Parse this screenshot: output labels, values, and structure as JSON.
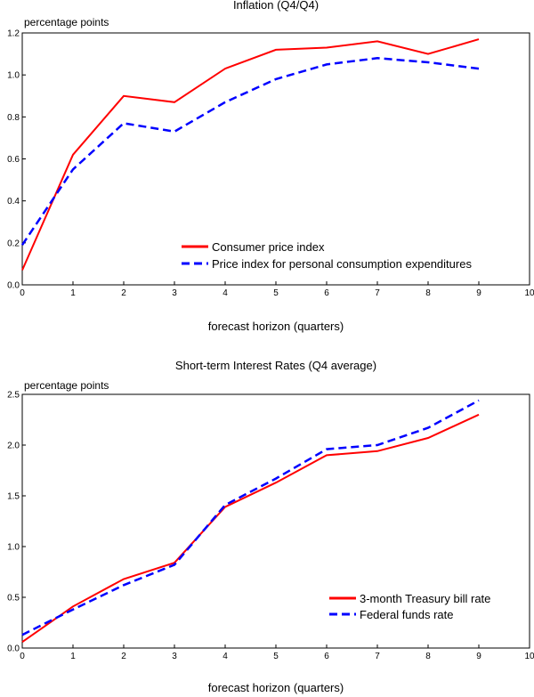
{
  "chart_data": [
    {
      "type": "line",
      "title": "Inflation (Q4/Q4)",
      "unit_label": "percentage points",
      "xlabel": "forecast horizon (quarters)",
      "ylabel": "percentage points",
      "xlim": [
        0,
        10
      ],
      "ylim": [
        0.0,
        1.2
      ],
      "x_ticks": [
        0,
        1,
        2,
        3,
        4,
        5,
        6,
        7,
        8,
        9,
        10
      ],
      "x_tick_labels": [
        "0",
        "1",
        "2",
        "3",
        "4",
        "5",
        "6",
        "7",
        "8",
        "9",
        "10"
      ],
      "y_ticks": [
        0.0,
        0.2,
        0.4,
        0.6,
        0.8,
        1.0,
        1.2
      ],
      "y_tick_labels": [
        "0.0",
        "0.2",
        "0.4",
        "0.6",
        "0.8",
        "1.0",
        "1.2"
      ],
      "legend_position": "bottom-right",
      "x": [
        0,
        1,
        2,
        3,
        4,
        5,
        6,
        7,
        8,
        9
      ],
      "series": [
        {
          "name": "Consumer price index",
          "color": "#ff0000",
          "style": "solid",
          "values": [
            0.07,
            0.62,
            0.9,
            0.87,
            1.03,
            1.12,
            1.13,
            1.16,
            1.1,
            1.17
          ]
        },
        {
          "name": "Price index for personal consumption expenditures",
          "color": "#0000ff",
          "style": "dashed",
          "values": [
            0.19,
            0.55,
            0.77,
            0.73,
            0.87,
            0.98,
            1.05,
            1.08,
            1.06,
            1.03
          ]
        }
      ]
    },
    {
      "type": "line",
      "title": "Short-term Interest Rates (Q4 average)",
      "unit_label": "percentage points",
      "xlabel": "forecast horizon (quarters)",
      "ylabel": "percentage points",
      "xlim": [
        0,
        10
      ],
      "ylim": [
        0.0,
        2.5
      ],
      "x_ticks": [
        0,
        1,
        2,
        3,
        4,
        5,
        6,
        7,
        8,
        9,
        10
      ],
      "x_tick_labels": [
        "0",
        "1",
        "2",
        "3",
        "4",
        "5",
        "6",
        "7",
        "8",
        "9",
        "10"
      ],
      "y_ticks": [
        0.0,
        0.5,
        1.0,
        1.5,
        2.0,
        2.5
      ],
      "y_tick_labels": [
        "0.0",
        "0.5",
        "1.0",
        "1.5",
        "2.0",
        "2.5"
      ],
      "legend_position": "bottom-right",
      "x": [
        0,
        1,
        2,
        3,
        4,
        5,
        6,
        7,
        8,
        9
      ],
      "series": [
        {
          "name": "3-month Treasury bill rate",
          "color": "#ff0000",
          "style": "solid",
          "values": [
            0.06,
            0.41,
            0.68,
            0.84,
            1.39,
            1.63,
            1.9,
            1.94,
            2.07,
            2.3
          ]
        },
        {
          "name": "Federal funds rate",
          "color": "#0000ff",
          "style": "dashed",
          "values": [
            0.13,
            0.38,
            0.62,
            0.82,
            1.41,
            1.67,
            1.96,
            2.0,
            2.17,
            2.44
          ]
        }
      ]
    }
  ]
}
